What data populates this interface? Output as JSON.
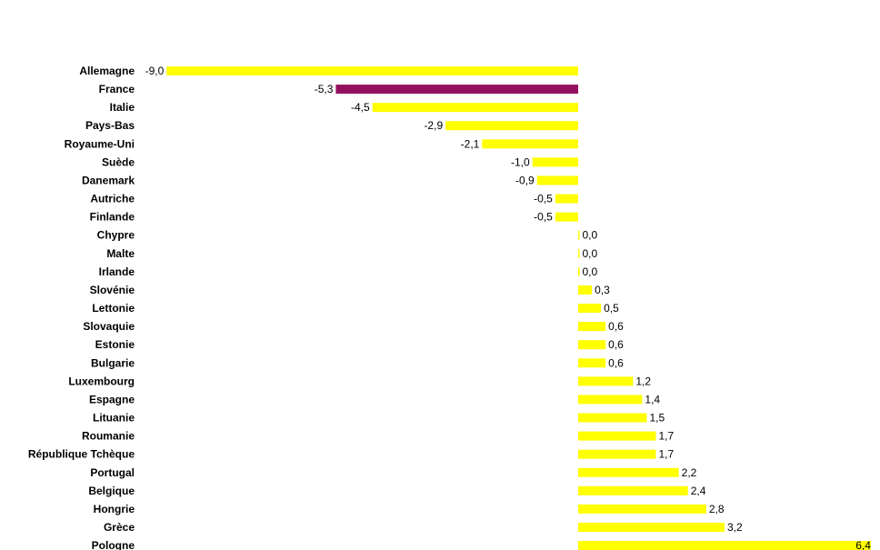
{
  "chart_data": {
    "type": "bar",
    "orientation": "horizontal",
    "title": "",
    "xlabel": "",
    "ylabel": "",
    "xlim": [
      -9.0,
      6.4
    ],
    "grid": false,
    "legend": "none",
    "categories": [
      "Allemagne",
      "France",
      "Italie",
      "Pays-Bas",
      "Royaume-Uni",
      "Suède",
      "Danemark",
      "Autriche",
      "Finlande",
      "Chypre",
      "Malte",
      "Irlande",
      "Slovénie",
      "Lettonie",
      "Slovaquie",
      "Estonie",
      "Bulgarie",
      "Luxembourg",
      "Espagne",
      "Lituanie",
      "Roumanie",
      "République Tchèque",
      "Portugal",
      "Belgique",
      "Hongrie",
      "Grèce",
      "Pologne"
    ],
    "values": [
      -9.0,
      -5.3,
      -4.5,
      -2.9,
      -2.1,
      -1.0,
      -0.9,
      -0.5,
      -0.5,
      0.0,
      0.0,
      0.0,
      0.3,
      0.5,
      0.6,
      0.6,
      0.6,
      1.2,
      1.4,
      1.5,
      1.7,
      1.7,
      2.2,
      2.4,
      2.8,
      3.2,
      6.4
    ],
    "value_labels": [
      "-9,0",
      "-5,3",
      "-4,5",
      "-2,9",
      "-2,1",
      "-1,0",
      "-0,9",
      "-0,5",
      "-0,5",
      "0,0",
      "0,0",
      "0,0",
      "0,3",
      "0,5",
      "0,6",
      "0,6",
      "0,6",
      "1,2",
      "1,4",
      "1,5",
      "1,7",
      "1,7",
      "2,2",
      "2,4",
      "2,8",
      "3,2",
      "6,4"
    ],
    "colors": {
      "default": "#FFFF00",
      "highlight": "#941060"
    },
    "highlight_category": "France"
  }
}
